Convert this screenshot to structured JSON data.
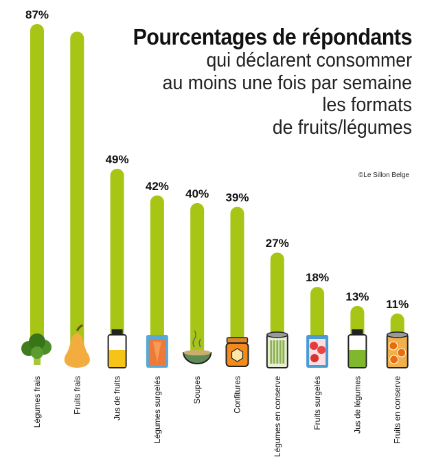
{
  "title": "Pourcentages de répondants",
  "subtitle": "qui déclarent consommer\nau moins une fois par semaine\nles formats\nde fruits/légumes",
  "credit": "©Le Sillon Belge",
  "colors": {
    "bar": "#a6c515",
    "text": "#111111"
  },
  "chart_data": {
    "type": "bar",
    "categories": [
      "Légumes frais",
      "Fruits frais",
      "Jus de fruits",
      "Légumes surgelés",
      "Soupes",
      "Confitures",
      "Légumes en conserve",
      "Fruits surgelés",
      "Jus de légumes",
      "Fruits en conserve"
    ],
    "values": [
      87,
      85,
      49,
      42,
      40,
      39,
      27,
      18,
      13,
      11
    ],
    "data_labels": [
      "87%",
      "",
      "49%",
      "42%",
      "40%",
      "39%",
      "27%",
      "18%",
      "13%",
      "11%"
    ],
    "icons": [
      "broccoli-icon",
      "pear-icon",
      "juice-bottle-icon",
      "frozen-vegetables-bag-icon",
      "soup-bowl-icon",
      "jam-jar-icon",
      "canned-vegetables-icon",
      "frozen-fruit-bag-icon",
      "vegetable-juice-bottle-icon",
      "canned-fruit-icon"
    ],
    "ylim": [
      0,
      87
    ],
    "grid": false,
    "legend": "none"
  }
}
